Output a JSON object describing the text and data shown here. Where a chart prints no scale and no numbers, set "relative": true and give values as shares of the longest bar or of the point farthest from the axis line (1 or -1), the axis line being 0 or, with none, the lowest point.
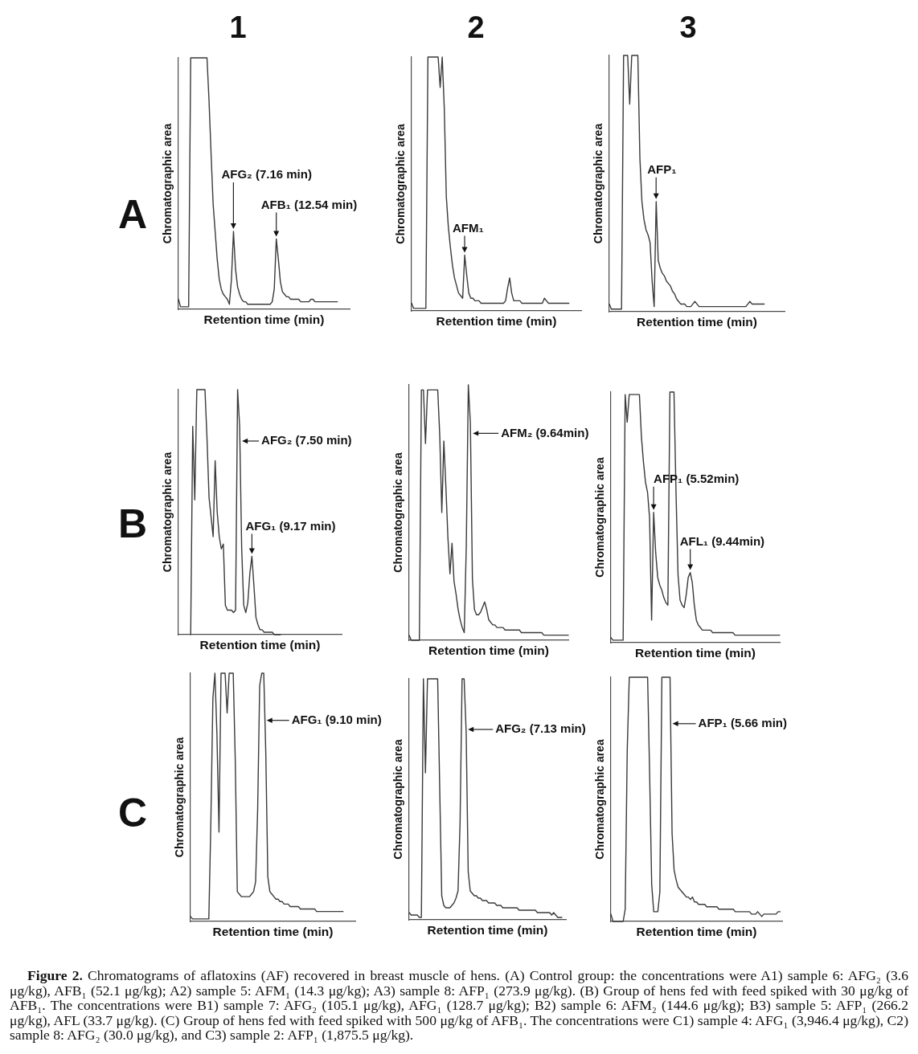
{
  "chart_data": [
    {
      "type": "line",
      "title": "1",
      "xlabel": "Retention time (min)",
      "ylabel": "Chromatographic area",
      "relative": true,
      "color": "#3a3a3a",
      "categories": [
        null,
        null,
        null,
        null,
        null,
        null,
        null,
        null,
        null,
        null,
        null,
        null,
        null,
        null,
        null,
        null,
        null,
        null,
        null,
        null,
        null,
        null,
        null,
        null,
        null,
        null,
        null,
        null,
        null,
        null,
        null,
        null,
        null,
        null,
        null,
        null,
        null,
        null,
        null,
        null,
        null,
        null,
        null,
        null,
        null,
        null,
        null,
        null,
        null,
        null,
        null,
        null,
        null,
        null,
        null,
        null,
        null,
        null,
        null,
        null,
        null,
        null,
        null,
        null,
        null,
        null,
        null,
        null,
        null,
        null,
        null,
        null,
        null,
        null,
        null,
        null,
        null,
        null,
        null,
        null,
        null,
        null,
        null,
        null,
        null
      ],
      "values": [
        0.04,
        0.01,
        0.01,
        0.01,
        0.01,
        0.01,
        1,
        1,
        1,
        1,
        1,
        1,
        1,
        1,
        1,
        0.83,
        0.62,
        0.42,
        0.31,
        0.2,
        0.12,
        0.08,
        0.06,
        0.05,
        0.04,
        0.02,
        0.12,
        0.31,
        0.16,
        0.09,
        0.06,
        0.04,
        0.03,
        0.03,
        0.02,
        0.02,
        0.02,
        0.02,
        0.02,
        0.02,
        0.02,
        0.02,
        0.02,
        0.02,
        0.02,
        0.02,
        0.03,
        0.08,
        0.28,
        0.2,
        0.11,
        0.07,
        0.06,
        0.05,
        0.05,
        0.04,
        0.04,
        0.04,
        0.04,
        0.04,
        0.03,
        0.03,
        0.03,
        0.03,
        0.03,
        0.04,
        0.04,
        0.03,
        0.03,
        0.03,
        0.03,
        0.03,
        0.03,
        0.03,
        0.03,
        0.03,
        0.03,
        0.03,
        0.03,
        null,
        null,
        null,
        null,
        null,
        null
      ],
      "annotations": [
        "A",
        "AFG₂ (7.16 min)",
        "AFB₁ (12.54 min)"
      ]
    },
    {
      "type": "line",
      "title": "2",
      "xlabel": "Retention time (min)",
      "ylabel": "Chromatographic area",
      "relative": true,
      "color": "#3a3a3a",
      "categories": [
        null,
        null,
        null,
        null,
        null,
        null,
        null,
        null,
        null,
        null,
        null,
        null,
        null,
        null,
        null,
        null,
        null,
        null,
        null,
        null,
        null,
        null,
        null,
        null,
        null,
        null,
        null,
        null,
        null,
        null,
        null,
        null,
        null,
        null,
        null,
        null,
        null,
        null,
        null,
        null,
        null,
        null,
        null,
        null,
        null,
        null,
        null,
        null,
        null,
        null,
        null,
        null,
        null,
        null,
        null,
        null,
        null,
        null,
        null,
        null,
        null,
        null,
        null,
        null,
        null,
        null,
        null,
        null,
        null,
        null,
        null,
        null,
        null,
        null,
        null,
        null,
        null,
        null,
        null,
        null,
        null,
        null,
        null,
        null
      ],
      "values": [
        0.03,
        0.01,
        0.01,
        0.01,
        0.01,
        0.01,
        0.01,
        0.01,
        1,
        1,
        1,
        1,
        1,
        1,
        0.88,
        1,
        0.8,
        0.45,
        0.33,
        0.25,
        0.18,
        0.13,
        0.1,
        0.07,
        0.06,
        0.05,
        0.22,
        0.14,
        0.07,
        0.05,
        0.05,
        0.04,
        0.04,
        0.04,
        0.03,
        0.03,
        0.03,
        0.03,
        0.03,
        0.03,
        0.03,
        0.03,
        0.03,
        0.03,
        0.03,
        0.03,
        0.04,
        0.09,
        0.13,
        0.07,
        0.04,
        0.04,
        0.04,
        0.04,
        0.03,
        0.03,
        0.03,
        0.03,
        0.03,
        0.03,
        0.03,
        0.03,
        0.03,
        0.03,
        0.03,
        0.05,
        0.04,
        0.03,
        0.03,
        0.03,
        0.03,
        0.03,
        0.03,
        0.03,
        0.03,
        0.03,
        0.03,
        0.03,
        null,
        null,
        null,
        null,
        null,
        null
      ],
      "annotations": [
        "AFM₁"
      ]
    },
    {
      "type": "line",
      "title": "3",
      "xlabel": "Retention time (min)",
      "ylabel": "Chromatographic area",
      "relative": true,
      "color": "#3a3a3a",
      "categories": [
        null,
        null,
        null,
        null,
        null,
        null,
        null,
        null,
        null,
        null,
        null,
        null,
        null,
        null,
        null,
        null,
        null,
        null,
        null,
        null,
        null,
        null,
        null,
        null,
        null,
        null,
        null,
        null,
        null,
        null,
        null,
        null,
        null,
        null,
        null,
        null,
        null,
        null,
        null,
        null,
        null,
        null,
        null,
        null,
        null,
        null,
        null,
        null,
        null,
        null,
        null,
        null,
        null,
        null,
        null,
        null,
        null,
        null,
        null,
        null,
        null,
        null,
        null,
        null,
        null,
        null,
        null,
        null,
        null,
        null,
        null,
        null,
        null,
        null,
        null,
        null,
        null,
        null,
        null,
        null,
        null,
        null,
        null,
        null,
        null,
        null,
        null
      ],
      "values": [
        0.03,
        0.01,
        0.01,
        0.01,
        0.01,
        0.01,
        0.01,
        1,
        1,
        1,
        0.81,
        1,
        1,
        1,
        1,
        0.6,
        0.43,
        0.36,
        0.32,
        0.3,
        0.27,
        0.12,
        0.02,
        0.43,
        0.2,
        0.17,
        0.15,
        0.14,
        0.12,
        0.11,
        0.1,
        0.08,
        0.07,
        0.05,
        0.04,
        0.03,
        0.03,
        0.03,
        0.02,
        0.02,
        0.02,
        0.03,
        0.04,
        0.03,
        0.02,
        0.02,
        0.02,
        0.02,
        0.02,
        0.02,
        0.02,
        0.02,
        0.02,
        0.02,
        0.02,
        0.02,
        0.02,
        0.02,
        0.02,
        0.02,
        0.02,
        0.02,
        0.02,
        0.02,
        0.02,
        0.02,
        0.02,
        0.02,
        0.03,
        0.04,
        0.03,
        0.03,
        0.03,
        0.03,
        0.03,
        0.03,
        0.03,
        null,
        null,
        null,
        null,
        null,
        null,
        null,
        null,
        null,
        null
      ],
      "annotations": [
        "AFP₁"
      ]
    },
    {
      "type": "line",
      "xlabel": "Retention time (min)",
      "ylabel": "Chromatographic area",
      "relative": true,
      "color": "#3a3a3a",
      "categories": [
        null,
        null,
        null,
        null,
        null,
        null,
        null,
        null,
        null,
        null,
        null,
        null,
        null,
        null,
        null,
        null,
        null,
        null,
        null,
        null,
        null,
        null,
        null,
        null,
        null,
        null,
        null,
        null,
        null,
        null,
        null,
        null,
        null,
        null,
        null,
        null,
        null,
        null,
        null,
        null,
        null,
        null,
        null,
        null,
        null,
        null,
        null,
        null,
        null,
        null,
        null,
        null,
        null,
        null,
        null,
        null,
        null,
        null,
        null,
        null,
        null,
        null,
        null,
        null,
        null,
        null,
        null,
        null,
        null,
        null,
        null,
        null,
        null,
        null,
        null,
        null,
        null,
        null,
        null,
        null,
        null
      ],
      "values": [
        null,
        null,
        null,
        null,
        null,
        null,
        0,
        0.85,
        0.55,
        1,
        1,
        1,
        1,
        1,
        0.8,
        0.56,
        0.48,
        0.4,
        0.71,
        0.5,
        0.4,
        0.35,
        0.37,
        0.12,
        0.1,
        0.1,
        0.1,
        0.09,
        0.1,
        1,
        0.85,
        0.35,
        0.12,
        0.09,
        0.13,
        0.25,
        0.32,
        0.2,
        0.07,
        0.04,
        0.02,
        0.02,
        0.01,
        0.01,
        0.01,
        0.01,
        0.01,
        0,
        0,
        0,
        0,
        null,
        null,
        null,
        null,
        null,
        null,
        null,
        null,
        null,
        null,
        null,
        null,
        null,
        null,
        null,
        null,
        null,
        null,
        null,
        null,
        null,
        null,
        null,
        null,
        null,
        null,
        null,
        null,
        null,
        null
      ],
      "annotations": [
        "B",
        "AFG₂ (7.50 min)",
        "AFG₁ (9.17 min)"
      ]
    },
    {
      "type": "line",
      "xlabel": "Retention time (min)",
      "ylabel": "Chromatographic area",
      "relative": true,
      "color": "#3a3a3a",
      "categories": [
        null,
        null,
        null,
        null,
        null,
        null,
        null,
        null,
        null,
        null,
        null,
        null,
        null,
        null,
        null,
        null,
        null,
        null,
        null,
        null,
        null,
        null,
        null,
        null,
        null,
        null,
        null,
        null,
        null,
        null,
        null,
        null,
        null,
        null,
        null,
        null,
        null,
        null,
        null,
        null,
        null,
        null,
        null,
        null,
        null,
        null,
        null,
        null,
        null,
        null,
        null,
        null,
        null,
        null,
        null,
        null,
        null,
        null,
        null,
        null,
        null,
        null,
        null,
        null,
        null,
        null,
        null,
        null,
        null,
        null,
        null,
        null,
        null,
        null,
        null,
        null,
        null,
        null,
        null
      ],
      "values": [
        0.02,
        0,
        0,
        0,
        0,
        0,
        0.98,
        0.98,
        0.77,
        0.98,
        0.98,
        0.98,
        0.98,
        0.98,
        0.98,
        0.8,
        0.5,
        0.78,
        0.6,
        0.4,
        0.26,
        0.38,
        0.23,
        0.18,
        0.12,
        0.08,
        0.05,
        0.03,
        0.37,
        1,
        0.85,
        0.24,
        0.12,
        0.1,
        0.1,
        0.11,
        0.13,
        0.15,
        0.12,
        0.08,
        0.07,
        0.06,
        0.06,
        0.05,
        0.05,
        0.05,
        0.05,
        0.04,
        0.04,
        0.04,
        0.04,
        0.04,
        0.04,
        0.04,
        0.04,
        0.03,
        0.03,
        0.03,
        0.03,
        0.03,
        0.03,
        0.03,
        0.03,
        0.03,
        0.03,
        0.03,
        0.02,
        0.02,
        0.02,
        0.02,
        0.02,
        0.02,
        0.02,
        0.02,
        0.02,
        0.02,
        0.02,
        0.02,
        0.02
      ],
      "annotations": [
        "AFM₂ (9.64min)"
      ]
    },
    {
      "type": "line",
      "xlabel": "Retention time (min)",
      "ylabel": "Chromatographic area",
      "relative": true,
      "color": "#3a3a3a",
      "categories": [
        null,
        null,
        null,
        null,
        null,
        null,
        null,
        null,
        null,
        null,
        null,
        null,
        null,
        null,
        null,
        null,
        null,
        null,
        null,
        null,
        null,
        null,
        null,
        null,
        null,
        null,
        null,
        null,
        null,
        null,
        null,
        null,
        null,
        null,
        null,
        null,
        null,
        null,
        null,
        null,
        null,
        null,
        null,
        null,
        null,
        null,
        null,
        null,
        null,
        null,
        null,
        null,
        null,
        null,
        null,
        null,
        null,
        null,
        null,
        null,
        null,
        null,
        null,
        null,
        null,
        null,
        null,
        null,
        null,
        null,
        null,
        null,
        null,
        null,
        null,
        null,
        null,
        null,
        null,
        null,
        null,
        null,
        null,
        null
      ],
      "values": [
        0.02,
        0.01,
        0.01,
        0.01,
        0.01,
        0.01,
        0.01,
        0.99,
        0.88,
        0.99,
        0.99,
        0.99,
        0.99,
        0.99,
        0.99,
        0.82,
        0.72,
        0.64,
        0.6,
        0.5,
        0.09,
        0.52,
        0.36,
        0.26,
        0.23,
        0.21,
        0.18,
        0.16,
        0.15,
        1,
        1,
        1,
        0.6,
        0.27,
        0.17,
        0.15,
        0.14,
        0.19,
        0.26,
        0.28,
        0.24,
        0.15,
        0.09,
        0.07,
        0.06,
        0.05,
        0.05,
        0.05,
        0.05,
        0.05,
        0.04,
        0.04,
        0.04,
        0.04,
        0.04,
        0.04,
        0.04,
        0.04,
        0.04,
        0.04,
        0.04,
        0.03,
        0.03,
        0.03,
        0.03,
        0.03,
        0.03,
        0.03,
        0.03,
        0.03,
        0.03,
        0.03,
        0.03,
        0.03,
        0.03,
        0.03,
        0.03,
        0.03,
        0.03,
        0.03,
        0.03,
        0.03,
        0.03,
        0.03
      ],
      "annotations": [
        "AFP₁ (5.52min)",
        "AFL₁ (9.44min)"
      ]
    },
    {
      "type": "line",
      "xlabel": "Retention time (min)",
      "ylabel": "Chromatographic area",
      "relative": true,
      "color": "#3a3a3a",
      "categories": [
        null,
        null,
        null,
        null,
        null,
        null,
        null,
        null,
        null,
        null,
        null,
        null,
        null,
        null,
        null,
        null,
        null,
        null,
        null,
        null,
        null,
        null,
        null,
        null,
        null,
        null,
        null,
        null,
        null,
        null,
        null,
        null,
        null,
        null,
        null,
        null,
        null,
        null,
        null,
        null,
        null,
        null,
        null,
        null,
        null,
        null,
        null,
        null,
        null,
        null,
        null,
        null,
        null,
        null,
        null,
        null,
        null,
        null,
        null,
        null,
        null,
        null,
        null,
        null,
        null,
        null,
        null,
        null,
        null,
        null,
        null,
        null,
        null,
        null,
        null,
        null,
        null,
        null,
        null,
        null,
        null,
        null
      ],
      "values": [
        0.02,
        0.01,
        0.01,
        0.01,
        0.01,
        0.01,
        0.01,
        0.01,
        0.01,
        0.01,
        0.4,
        0.9,
        1,
        0.75,
        0.36,
        1,
        1,
        1,
        0.84,
        1,
        1,
        1,
        0.65,
        0.12,
        0.11,
        0.1,
        0.1,
        0.1,
        0.1,
        0.1,
        0.11,
        0.12,
        0.16,
        0.45,
        0.95,
        1,
        1,
        0.68,
        0.18,
        0.12,
        0.11,
        0.1,
        0.09,
        0.09,
        0.08,
        0.08,
        0.07,
        0.07,
        0.07,
        0.06,
        0.06,
        0.06,
        0.06,
        0.06,
        0.05,
        0.05,
        0.05,
        0.05,
        0.05,
        0.05,
        0.05,
        0.05,
        0.04,
        0.04,
        0.04,
        0.04,
        0.04,
        0.04,
        0.04,
        0.04,
        0.04,
        0.04,
        0.04,
        0.04,
        0.04,
        0.04,
        null,
        null,
        null,
        null,
        null,
        null
      ],
      "annotations": [
        "C",
        "AFG₁ (9.10 min)"
      ]
    },
    {
      "type": "line",
      "xlabel": "Retention time (min)",
      "ylabel": "Chromatographic area",
      "relative": true,
      "color": "#3a3a3a",
      "categories": [
        null,
        null,
        null,
        null,
        null,
        null,
        null,
        null,
        null,
        null,
        null,
        null,
        null,
        null,
        null,
        null,
        null,
        null,
        null,
        null,
        null,
        null,
        null,
        null,
        null,
        null,
        null,
        null,
        null,
        null,
        null,
        null,
        null,
        null,
        null,
        null,
        null,
        null,
        null,
        null,
        null,
        null,
        null,
        null,
        null,
        null,
        null,
        null,
        null,
        null,
        null,
        null,
        null,
        null,
        null,
        null,
        null,
        null,
        null,
        null,
        null,
        null,
        null,
        null,
        null,
        null,
        null,
        null,
        null,
        null,
        null,
        null,
        null,
        null,
        null,
        null,
        null,
        null
      ],
      "values": [
        0.03,
        0.02,
        0.02,
        0.02,
        0.02,
        0.01,
        0.01,
        1,
        0.61,
        1,
        1,
        1,
        1,
        1,
        1,
        0.55,
        0.1,
        0.06,
        0.05,
        0.05,
        0.05,
        0.06,
        0.07,
        0.09,
        0.12,
        0.4,
        1,
        1,
        0.78,
        0.2,
        0.12,
        0.11,
        0.1,
        0.1,
        0.09,
        0.09,
        0.08,
        0.08,
        0.08,
        0.07,
        0.07,
        0.07,
        0.07,
        0.06,
        0.06,
        0.06,
        0.05,
        0.05,
        0.05,
        0.05,
        0.05,
        0.05,
        0.05,
        0.05,
        0.04,
        0.04,
        0.04,
        0.04,
        0.04,
        0.04,
        0.04,
        0.04,
        0.04,
        0.03,
        0.03,
        0.03,
        0.03,
        0.03,
        0.03,
        0.03,
        0.02,
        0.03,
        0.02,
        0.01,
        0.01,
        0.01,
        null,
        null
      ],
      "annotations": [
        "AFG₂ (7.13 min)"
      ]
    },
    {
      "type": "line",
      "xlabel": "Retention time (min)",
      "ylabel": "Chromatographic area",
      "relative": true,
      "color": "#3a3a3a",
      "categories": [
        null,
        null,
        null,
        null,
        null,
        null,
        null,
        null,
        null,
        null,
        null,
        null,
        null,
        null,
        null,
        null,
        null,
        null,
        null,
        null,
        null,
        null,
        null,
        null,
        null,
        null,
        null,
        null,
        null,
        null,
        null,
        null,
        null,
        null,
        null,
        null,
        null,
        null,
        null,
        null,
        null,
        null,
        null,
        null,
        null,
        null,
        null,
        null,
        null,
        null,
        null,
        null,
        null,
        null,
        null,
        null,
        null,
        null,
        null,
        null,
        null,
        null,
        null,
        null,
        null,
        null,
        null,
        null,
        null,
        null,
        null,
        null,
        null,
        null,
        null,
        null,
        null,
        null,
        null,
        null,
        null,
        null,
        null,
        null,
        null
      ],
      "values": [
        0.03,
        0,
        0,
        0,
        0,
        0,
        0,
        0.05,
        0.7,
        1,
        1,
        1,
        1,
        1,
        1,
        1,
        1,
        1,
        1,
        0.6,
        0.15,
        0.04,
        0.04,
        0.04,
        0.12,
        1,
        1,
        1,
        1,
        1,
        0.36,
        0.21,
        0.17,
        0.14,
        0.13,
        0.12,
        0.11,
        0.1,
        0.1,
        0.09,
        0.1,
        0.08,
        0.08,
        0.07,
        0.07,
        0.07,
        0.07,
        0.06,
        0.06,
        0.06,
        0.06,
        0.06,
        0.06,
        0.05,
        0.05,
        0.05,
        0.05,
        0.05,
        0.05,
        0.05,
        0.05,
        0.04,
        0.04,
        0.04,
        0.04,
        0.04,
        0.04,
        0.04,
        0.04,
        0.03,
        0.03,
        0.03,
        0.04,
        0.03,
        0.02,
        0.03,
        0.03,
        0.03,
        0.03,
        0.03,
        0.03,
        0.03,
        0.04,
        0.04,
        null
      ],
      "annotations": [
        "AFP₁ (5.66 min)"
      ]
    },
    {
      "type": "other",
      "annotations": [
        "Figure 2.",
        "Chromatograms of aflatoxins (AF) recovered in breast muscle of hens. (A) Control group: the concentrations were A1) sample 6: AFG₂ (3.6 μg/kg), AFB₁ (52.1 μg/kg); A2) sample 5: AFM₁ (14.3 μg/kg); A3) sample 8: AFP₁ (273.9 μg/kg). (B) Group of hens fed with feed spiked with 30 μg/kg of AFB₁. The concentrations were B1) sample 7: AFG₂ (105.1 μg/kg), AFG₁ (128.7 μg/kg); B2) sample 6: AFM₂ (144.6 μg/kg); B3) sample 5: AFP₁ (266.2 μg/kg), AFL (33.7 μg/kg). (C) Group of hens fed with feed spiked with 500 μg/kg of AFB₁. The concentrations were C1) sample 4: AFG₁ (3,946.4 μg/kg), C2) sample 8: AFG₂ (30.0 μg/kg), and C3) sample 2: AFP₁ (1,875.5 μg/kg)."
      ]
    }
  ]
}
